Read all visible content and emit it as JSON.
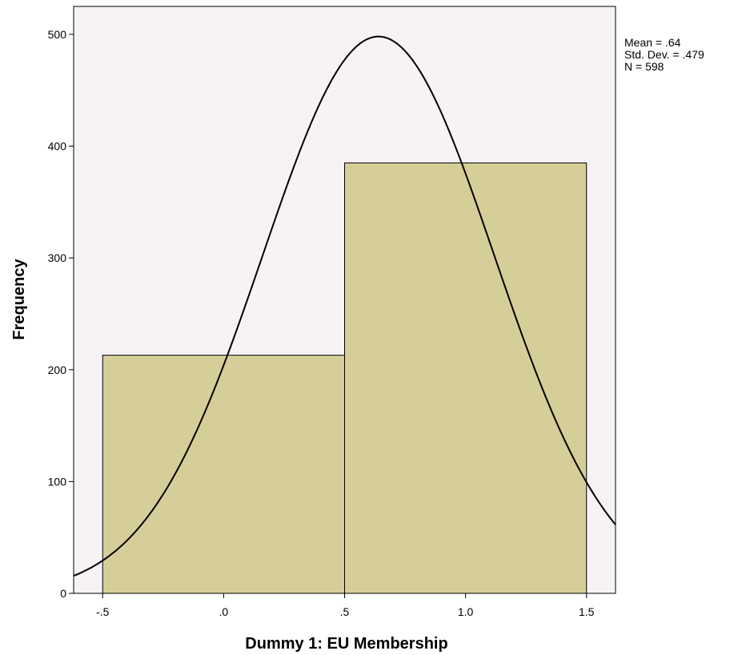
{
  "chart_data": {
    "type": "bar",
    "subtype": "histogram",
    "bins": [
      {
        "start": -0.5,
        "end": 0.5,
        "count": 213
      },
      {
        "start": 0.5,
        "end": 1.5,
        "count": 385
      }
    ],
    "xlabel": "Dummy 1: EU Membership",
    "ylabel": "Frequency",
    "xlim": [
      -0.62,
      1.62
    ],
    "ylim": [
      0,
      525
    ],
    "x_ticks": [
      -0.5,
      0.0,
      0.5,
      1.0,
      1.5
    ],
    "x_tick_labels": [
      "-.5",
      ".0",
      ".5",
      "1.0",
      "1.5"
    ],
    "y_ticks": [
      0,
      100,
      200,
      300,
      400,
      500
    ],
    "y_tick_labels": [
      "0",
      "100",
      "200",
      "300",
      "400",
      "500"
    ],
    "normal_curve": {
      "mean": 0.64,
      "std_dev": 0.479,
      "n": 598,
      "bin_width": 1
    },
    "stats_text": [
      "Mean = .64",
      "Std. Dev. = .479",
      "N = 598"
    ],
    "grid": false,
    "colors": {
      "bar_fill": "#d6ce98",
      "plot_background": "#f6f2f6",
      "line": "#000000"
    }
  }
}
